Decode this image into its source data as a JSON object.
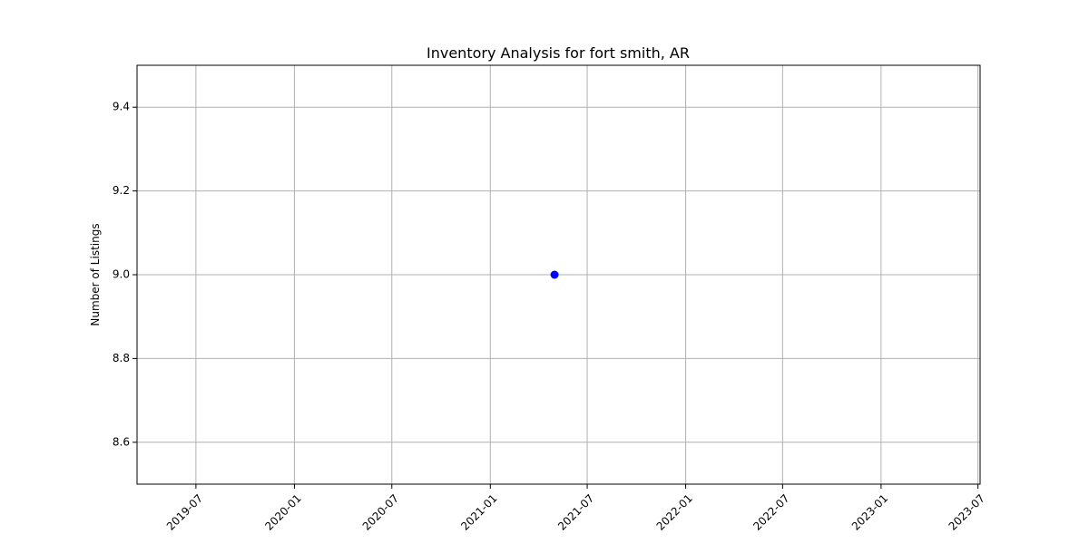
{
  "chart_data": {
    "type": "scatter",
    "title": "Inventory Analysis for fort smith, AR",
    "xlabel": "",
    "ylabel": "Number of Listings",
    "x_type": "date",
    "xlim": [
      "2019-03-13",
      "2023-07-05"
    ],
    "ylim": [
      8.5,
      9.5
    ],
    "x_ticks": [
      "2019-07",
      "2020-01",
      "2020-07",
      "2021-01",
      "2021-07",
      "2022-01",
      "2022-07",
      "2023-01",
      "2023-07"
    ],
    "y_ticks": [
      "8.6",
      "8.8",
      "9.0",
      "9.2",
      "9.4"
    ],
    "grid": true,
    "series": [
      {
        "color": "#0000ff",
        "marker": "circle",
        "points": [
          {
            "x": "2021-05-01",
            "y": 9.0
          }
        ]
      }
    ]
  }
}
